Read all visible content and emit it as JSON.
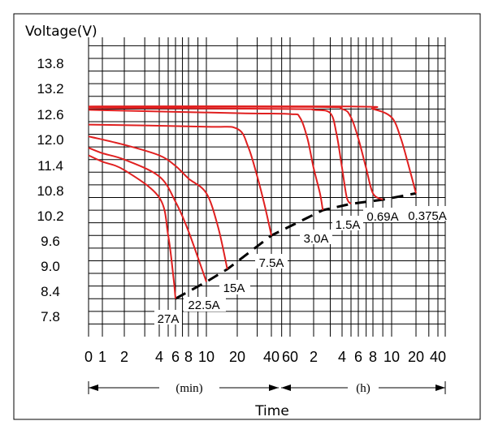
{
  "chart_data": {
    "type": "line",
    "ylabel": "Voltage(V)",
    "xlabel": "Time",
    "y_ticks": [
      "13.8",
      "13.2",
      "12.6",
      "12.0",
      "11.4",
      "10.8",
      "10.2",
      "9.6",
      "9.0",
      "8.4",
      "7.8"
    ],
    "x_ticks": [
      "0",
      "1",
      "2",
      "4",
      "6",
      "8",
      "10",
      "20",
      "40",
      "60",
      "2",
      "4",
      "6",
      "8",
      "10",
      "20",
      "40"
    ],
    "x_units": {
      "min": "(min)",
      "h": "(h)"
    },
    "ylim": [
      7.2,
      14.3
    ],
    "curve_color": "#e02020",
    "series": [
      {
        "name": "27A",
        "points": [
          [
            0,
            11.5
          ],
          [
            1,
            11.35
          ],
          [
            2,
            11.15
          ],
          [
            4,
            10.5
          ],
          [
            5,
            9.6
          ],
          [
            5.7,
            8.6
          ],
          [
            6,
            8.1
          ]
        ]
      },
      {
        "name": "22.5A",
        "points": [
          [
            0,
            11.68
          ],
          [
            1,
            11.55
          ],
          [
            2,
            11.4
          ],
          [
            4,
            11.0
          ],
          [
            6,
            10.4
          ],
          [
            8,
            9.7
          ],
          [
            10,
            8.5
          ]
        ]
      },
      {
        "name": "15A",
        "points": [
          [
            0,
            11.95
          ],
          [
            2,
            11.75
          ],
          [
            4,
            11.5
          ],
          [
            6,
            11.25
          ],
          [
            8,
            10.95
          ],
          [
            10,
            10.6
          ],
          [
            13,
            9.8
          ],
          [
            16,
            8.8
          ]
        ]
      },
      {
        "name": "7.5A",
        "points": [
          [
            0,
            12.23
          ],
          [
            10,
            12.18
          ],
          [
            20,
            12.13
          ],
          [
            25,
            11.7
          ],
          [
            30,
            11.0
          ],
          [
            35,
            10.3
          ],
          [
            40,
            9.6
          ]
        ]
      },
      {
        "name": "3.0A",
        "points": [
          [
            0,
            12.58
          ],
          [
            20,
            12.5
          ],
          [
            60,
            12.48
          ],
          [
            80,
            12.4
          ],
          [
            100,
            11.9
          ],
          [
            120,
            11.2
          ],
          [
            140,
            10.6
          ],
          [
            150,
            10.2
          ]
        ]
      },
      {
        "name": "1.5A",
        "points": [
          [
            0,
            12.63
          ],
          [
            60,
            12.6
          ],
          [
            120,
            12.58
          ],
          [
            180,
            12.5
          ],
          [
            210,
            12.0
          ],
          [
            240,
            11.2
          ],
          [
            270,
            10.5
          ],
          [
            300,
            10.35
          ]
        ]
      },
      {
        "name": "0.69A",
        "points": [
          [
            0,
            12.65
          ],
          [
            120,
            12.65
          ],
          [
            240,
            12.6
          ],
          [
            300,
            12.4
          ],
          [
            360,
            11.9
          ],
          [
            420,
            11.2
          ],
          [
            480,
            10.6
          ],
          [
            540,
            10.45
          ]
        ]
      },
      {
        "name": "0.375A",
        "points": [
          [
            0,
            12.66
          ],
          [
            300,
            12.66
          ],
          [
            480,
            12.6
          ],
          [
            600,
            12.4
          ],
          [
            780,
            11.9
          ],
          [
            960,
            11.3
          ],
          [
            1200,
            10.6
          ]
        ]
      }
    ]
  }
}
